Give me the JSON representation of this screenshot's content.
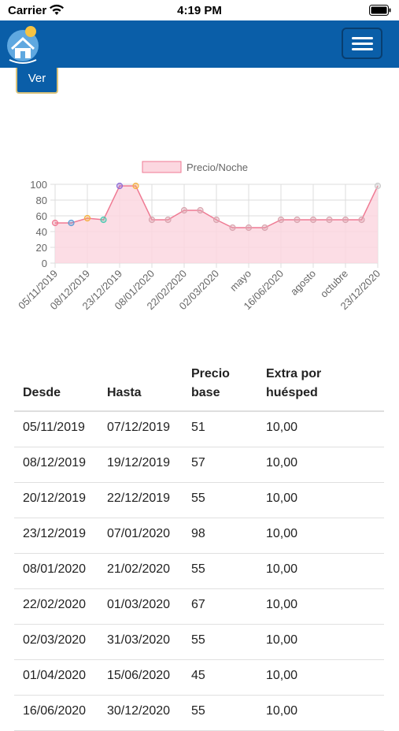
{
  "status_bar": {
    "carrier": "Carrier",
    "time": "4:19 PM"
  },
  "navbar": {
    "logo_icon": "house-sun-logo-icon",
    "menu_icon": "hamburger-menu-icon"
  },
  "ver_button": {
    "label": "Ver"
  },
  "chart_data": {
    "type": "line",
    "legend": [
      "Precio/Noche"
    ],
    "legend_position": "top",
    "grid": true,
    "ylim": [
      0,
      100
    ],
    "yticks": [
      0,
      20,
      40,
      60,
      80,
      100
    ],
    "x_tick_labels": [
      "05/11/2019",
      "08/12/2019",
      "23/12/2019",
      "08/01/2020",
      "22/02/2020",
      "02/03/2020",
      "mayo",
      "16/06/2020",
      "agosto",
      "octubre",
      "23/12/2020"
    ],
    "series": [
      {
        "name": "Precio/Noche",
        "color": "#ef7a93",
        "fill": "#fcd7e0",
        "values": [
          51,
          51,
          57,
          55,
          98,
          98,
          55,
          55,
          67,
          67,
          55,
          45,
          45,
          45,
          55,
          55,
          55,
          55,
          55,
          55,
          98
        ],
        "point_colors": [
          "#ef7a93",
          "#5b9bd5",
          "#f5b041",
          "#48c9b0",
          "#8e6bd6",
          "#f5b041",
          "#d9a4ae",
          "#d9a4ae",
          "#d9a4ae",
          "#d9a4ae",
          "#d9a4ae",
          "#d9a4ae",
          "#d9a4ae",
          "#d9a4ae",
          "#d9a4ae",
          "#d9a4ae",
          "#d9a4ae",
          "#d9a4ae",
          "#d9a4ae",
          "#d9a4ae",
          "#cccccc"
        ]
      }
    ]
  },
  "table": {
    "headers": {
      "desde": "Desde",
      "hasta": "Hasta",
      "precio_1": "Precio",
      "precio_2": "base",
      "extra_1": "Extra por",
      "extra_2": "huésped"
    },
    "rows": [
      [
        "05/11/2019",
        "07/12/2019",
        "51",
        "10,00"
      ],
      [
        "08/12/2019",
        "19/12/2019",
        "57",
        "10,00"
      ],
      [
        "20/12/2019",
        "22/12/2019",
        "55",
        "10,00"
      ],
      [
        "23/12/2019",
        "07/01/2020",
        "98",
        "10,00"
      ],
      [
        "08/01/2020",
        "21/02/2020",
        "55",
        "10,00"
      ],
      [
        "22/02/2020",
        "01/03/2020",
        "67",
        "10,00"
      ],
      [
        "02/03/2020",
        "31/03/2020",
        "55",
        "10,00"
      ],
      [
        "01/04/2020",
        "15/06/2020",
        "45",
        "10,00"
      ],
      [
        "16/06/2020",
        "30/12/2020",
        "55",
        "10,00"
      ]
    ]
  }
}
